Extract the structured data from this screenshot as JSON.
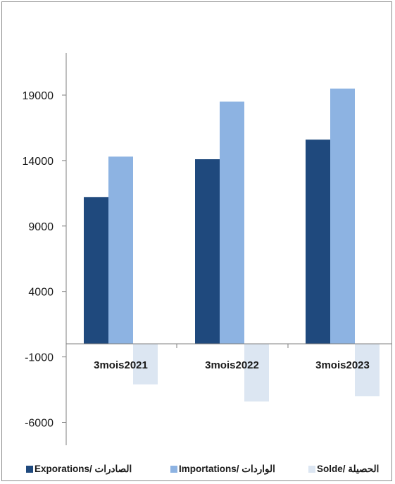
{
  "chart_data": {
    "type": "bar",
    "categories": [
      "3mois2021",
      "3mois2022",
      "3mois2023"
    ],
    "series": [
      {
        "name": "Exporations/  الصادرات",
        "color": "#1f497d",
        "values": [
          11200,
          14100,
          15600
        ]
      },
      {
        "name": "Importations/ الواردات",
        "color": "#8db3e2",
        "values": [
          14300,
          18500,
          19500
        ]
      },
      {
        "name": "Solde/ الحصيلة",
        "color": "#dce6f2",
        "values": [
          -3100,
          -4400,
          -4000
        ]
      }
    ],
    "y_ticks": [
      19000,
      14000,
      9000,
      4000,
      -1000,
      -6000
    ],
    "ylim": [
      -6000,
      24000
    ],
    "grid": false,
    "legend_position": "bottom"
  }
}
